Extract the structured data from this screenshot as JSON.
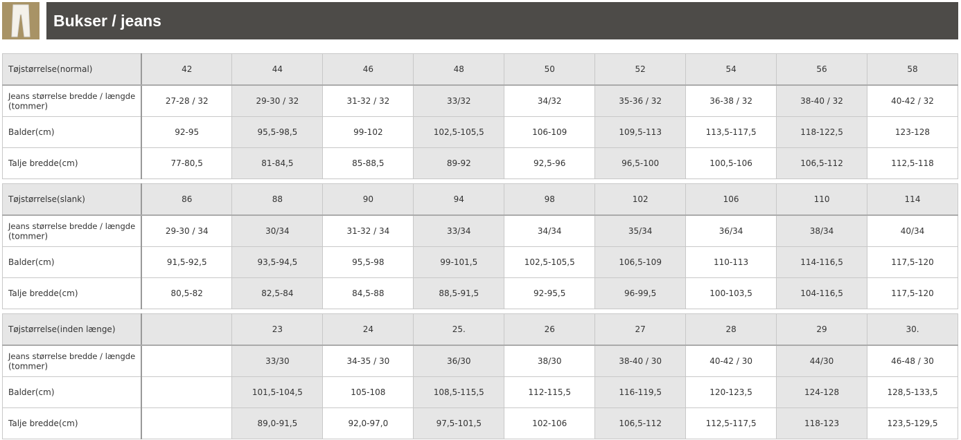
{
  "header": {
    "title": "Bukser / jeans"
  },
  "tables": [
    {
      "rows": [
        [
          "Tøjstørrelse(normal)",
          "42",
          "44",
          "46",
          "48",
          "50",
          "52",
          "54",
          "56",
          "58"
        ],
        [
          {
            "main": "Jeans størrelse bredde / længde",
            "unit": "(tommer)"
          },
          "27-28 / 32",
          "29-30 / 32",
          "31-32 / 32",
          "33/32",
          "34/32",
          "35-36 / 32",
          "36-38 / 32",
          "38-40 / 32",
          "40-42 / 32"
        ],
        [
          "Balder(cm)",
          "92-95",
          "95,5-98,5",
          "99-102",
          "102,5-105,5",
          "106-109",
          "109,5-113",
          "113,5-117,5",
          "118-122,5",
          "123-128"
        ],
        [
          "Talje bredde(cm)",
          "77-80,5",
          "81-84,5",
          "85-88,5",
          "89-92",
          "92,5-96",
          "96,5-100",
          "100,5-106",
          "106,5-112",
          "112,5-118"
        ]
      ]
    },
    {
      "rows": [
        [
          "Tøjstørrelse(slank)",
          "86",
          "88",
          "90",
          "94",
          "98",
          "102",
          "106",
          "110",
          "114"
        ],
        [
          {
            "main": "Jeans størrelse bredde / længde",
            "unit": "(tommer)"
          },
          "29-30 / 34",
          "30/34",
          "31-32 / 34",
          "33/34",
          "34/34",
          "35/34",
          "36/34",
          "38/34",
          "40/34"
        ],
        [
          "Balder(cm)",
          "91,5-92,5",
          "93,5-94,5",
          "95,5-98",
          "99-101,5",
          "102,5-105,5",
          "106,5-109",
          "110-113",
          "114-116,5",
          "117,5-120"
        ],
        [
          "Talje bredde(cm)",
          "80,5-82",
          "82,5-84",
          "84,5-88",
          "88,5-91,5",
          "92-95,5",
          "96-99,5",
          "100-103,5",
          "104-116,5",
          "117,5-120"
        ]
      ]
    },
    {
      "rows": [
        [
          "Tøjstørrelse(inden længe)",
          null,
          "23",
          "24",
          "25.",
          "26",
          "27",
          "28",
          "29",
          "30."
        ],
        [
          {
            "main": "Jeans størrelse bredde / længde",
            "unit": "(tommer)"
          },
          null,
          "33/30",
          "34-35 / 30",
          "36/30",
          "38/30",
          "38-40 / 30",
          "40-42 / 30",
          "44/30",
          "46-48 / 30"
        ],
        [
          "Balder(cm)",
          null,
          "101,5-104,5",
          "105-108",
          "108,5-115,5",
          "112-115,5",
          "116-119,5",
          "120-123,5",
          "124-128",
          "128,5-133,5"
        ],
        [
          "Talje bredde(cm)",
          null,
          "89,0-91,5",
          "92,0-97,0",
          "97,5-101,5",
          "102-106",
          "106,5-112",
          "112,5-117,5",
          "118-123",
          "123,5-129,5"
        ]
      ]
    }
  ]
}
